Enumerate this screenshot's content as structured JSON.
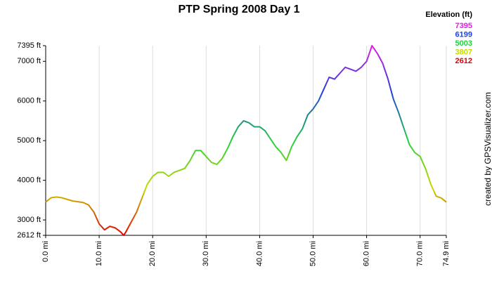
{
  "chart_data": {
    "type": "line",
    "title": "PTP Spring 2008 Day 1",
    "credit": "created by GPSVisualizer.com",
    "x": [
      0,
      1,
      2,
      3,
      4,
      5,
      6,
      7,
      8,
      9,
      10,
      11,
      12,
      13,
      14,
      14.6,
      15,
      16,
      17,
      18,
      19,
      20,
      21,
      22,
      23,
      24,
      25,
      26,
      27,
      28,
      29,
      30,
      31,
      32,
      33,
      34,
      35,
      36,
      37,
      38,
      39,
      40,
      41,
      42,
      43,
      44,
      45,
      46,
      47,
      48,
      49,
      50,
      51,
      52,
      53,
      54,
      55,
      56,
      57,
      58,
      59,
      60,
      61,
      62,
      63,
      64,
      65,
      66,
      67,
      68,
      69,
      70,
      71,
      72,
      73,
      74,
      74.9
    ],
    "values": [
      3450,
      3560,
      3580,
      3560,
      3520,
      3480,
      3460,
      3440,
      3380,
      3200,
      2900,
      2750,
      2840,
      2800,
      2700,
      2612,
      2700,
      2950,
      3200,
      3550,
      3900,
      4100,
      4200,
      4200,
      4100,
      4200,
      4250,
      4300,
      4500,
      4750,
      4750,
      4600,
      4450,
      4400,
      4550,
      4800,
      5100,
      5350,
      5500,
      5450,
      5350,
      5350,
      5250,
      5050,
      4850,
      4700,
      4500,
      4850,
      5100,
      5300,
      5650,
      5800,
      6000,
      6300,
      6600,
      6550,
      6700,
      6850,
      6800,
      6750,
      6850,
      7000,
      7395,
      7200,
      6950,
      6550,
      6050,
      5700,
      5300,
      4900,
      4700,
      4600,
      4300,
      3900,
      3600,
      3550,
      3450
    ],
    "xlim": [
      0,
      74.9
    ],
    "xticks": [
      {
        "value": 0,
        "label": "0.0 mi"
      },
      {
        "value": 10,
        "label": "10.0 mi"
      },
      {
        "value": 20,
        "label": "20.0 mi"
      },
      {
        "value": 30,
        "label": "30.0 mi"
      },
      {
        "value": 40,
        "label": "40.0 mi"
      },
      {
        "value": 50,
        "label": "50.0 mi"
      },
      {
        "value": 60,
        "label": "60.0 mi"
      },
      {
        "value": 70,
        "label": "70.0 mi"
      },
      {
        "value": 74.9,
        "label": "74.9 mi"
      }
    ],
    "ylim": [
      2612,
      7395
    ],
    "yticks": [
      {
        "value": 2612,
        "label": "2612 ft"
      },
      {
        "value": 3000,
        "label": "3000 ft"
      },
      {
        "value": 4000,
        "label": "4000 ft"
      },
      {
        "value": 5000,
        "label": "5000 ft"
      },
      {
        "value": 6000,
        "label": "6000 ft"
      },
      {
        "value": 7000,
        "label": "7000 ft"
      },
      {
        "value": 7395,
        "label": "7395 ft"
      }
    ],
    "grid": "x",
    "legend": {
      "title": "Elevation (ft)",
      "items": [
        {
          "value": 7395,
          "color": "#e020e0"
        },
        {
          "value": 6199,
          "color": "#2040e0"
        },
        {
          "value": 5003,
          "color": "#20d040"
        },
        {
          "value": 3807,
          "color": "#c8d800"
        },
        {
          "value": 2612,
          "color": "#e00000"
        }
      ]
    }
  }
}
